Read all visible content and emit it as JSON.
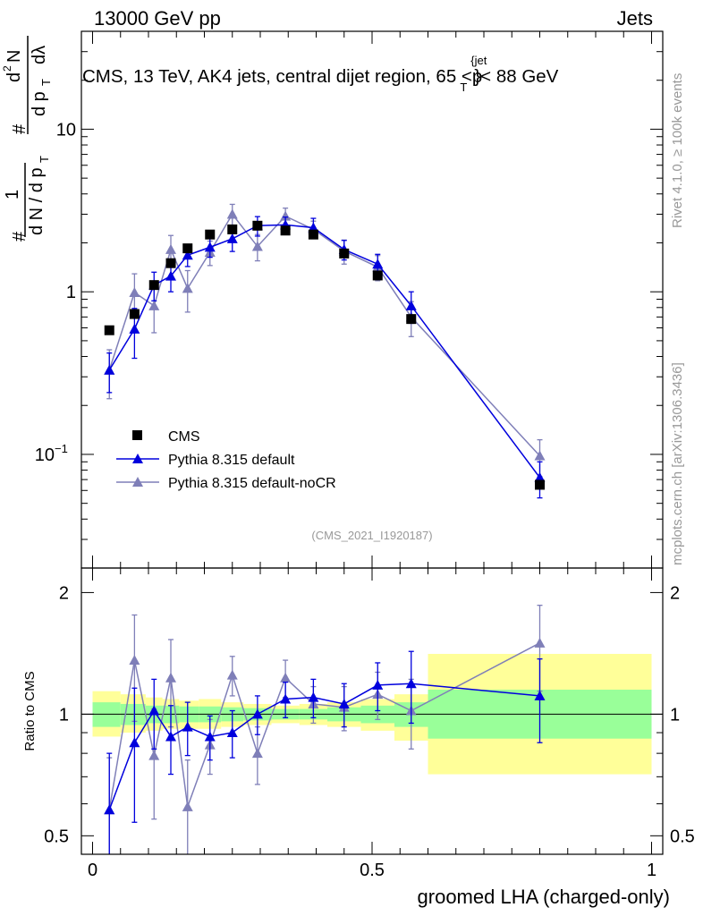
{
  "header": {
    "left": "13000 GeV pp",
    "right": "Jets"
  },
  "side_labels": {
    "rivet": "Rivet 4.1.0, ≥ 100k events",
    "mcplots": "mcplots.cern.ch [arXiv:1306.3436]"
  },
  "colors": {
    "cms": "#000000",
    "pythia_default": "#0000dd",
    "pythia_nocr": "#7f7fb8",
    "band_inner": "#99ff99",
    "band_outer": "#ffff99"
  },
  "chart_data": [
    {
      "type": "scatter",
      "panel": "main",
      "title": "CMS, 13 TeV, AK4 jets, central dijet region, 65 < p_T^{jet} < 88 GeV",
      "title_parts": {
        "prefix": "CMS, 13 TeV, AK4 jets, central dijet region, 65 <",
        "p": "p",
        "sub": "T",
        "sup": "{jet",
        "suffix": "}< 88 GeV"
      },
      "ylabel": "1/(dN/dp_T) d^2N/(dp_T dλ)",
      "ylabel_parts": {
        "hash": "#",
        "one": "1",
        "frac_den": "d N / d p",
        "sub_T": "T",
        "num_hash": "#",
        "num": "d",
        "sup2": "2",
        "N": "N",
        "den": "d p",
        "den2": "dλ"
      },
      "yscale": "log",
      "ylim": [
        0.02,
        40
      ],
      "xlim": [
        -0.02,
        1.02
      ],
      "y_ticks": [
        {
          "value": 10,
          "label": "10"
        },
        {
          "value": 1,
          "label": "1"
        },
        {
          "value": 0.1,
          "label": "10",
          "sup": "−1"
        }
      ],
      "analysis_id": "(CMS_2021_I1920187)",
      "legend": {
        "placement": "bottom-left",
        "entries": [
          "CMS",
          "Pythia 8.315 default",
          "Pythia 8.315 default-noCR"
        ]
      },
      "series": [
        {
          "name": "CMS",
          "marker": "square",
          "x": [
            0.03,
            0.075,
            0.11,
            0.14,
            0.17,
            0.21,
            0.25,
            0.295,
            0.345,
            0.395,
            0.45,
            0.51,
            0.57,
            0.8
          ],
          "y": [
            0.58,
            0.73,
            1.1,
            1.5,
            1.85,
            2.25,
            2.42,
            2.55,
            2.38,
            2.25,
            1.72,
            1.26,
            0.68,
            0.065
          ]
        },
        {
          "name": "Pythia 8.315 default",
          "marker": "triangle",
          "line": true,
          "x": [
            0.03,
            0.075,
            0.11,
            0.14,
            0.17,
            0.21,
            0.25,
            0.295,
            0.345,
            0.395,
            0.45,
            0.51,
            0.57,
            0.8
          ],
          "y": [
            0.33,
            0.59,
            1.1,
            1.25,
            1.68,
            1.88,
            2.12,
            2.55,
            2.58,
            2.48,
            1.82,
            1.48,
            0.82,
            0.072
          ],
          "err": [
            0.09,
            0.2,
            0.22,
            0.25,
            0.25,
            0.25,
            0.35,
            0.35,
            0.3,
            0.35,
            0.25,
            0.22,
            0.18,
            0.018
          ]
        },
        {
          "name": "Pythia 8.315 default-noCR",
          "marker": "triangle",
          "line": true,
          "x": [
            0.03,
            0.075,
            0.11,
            0.14,
            0.17,
            0.21,
            0.25,
            0.295,
            0.345,
            0.395,
            0.45,
            0.51,
            0.57,
            0.8
          ],
          "y": [
            0.33,
            0.99,
            0.82,
            1.82,
            1.05,
            1.75,
            3.0,
            1.9,
            2.92,
            2.42,
            1.78,
            1.42,
            0.7,
            0.098
          ],
          "err": [
            0.11,
            0.3,
            0.26,
            0.4,
            0.3,
            0.3,
            0.45,
            0.35,
            0.35,
            0.3,
            0.3,
            0.25,
            0.17,
            0.025
          ]
        }
      ]
    },
    {
      "type": "scatter",
      "panel": "ratio",
      "ylabel": "Ratio to CMS",
      "xlabel": "groomed LHA (charged-only)",
      "yscale": "log",
      "ylim": [
        0.45,
        2.3
      ],
      "xlim": [
        -0.02,
        1.02
      ],
      "x_ticks": [
        {
          "value": 0,
          "label": "0"
        },
        {
          "value": 0.5,
          "label": "0.5"
        },
        {
          "value": 1,
          "label": "1"
        }
      ],
      "y_ticks": [
        {
          "value": 2,
          "label": "2"
        },
        {
          "value": 1,
          "label": "1"
        },
        {
          "value": 0.5,
          "label": "0.5"
        }
      ],
      "bands": [
        {
          "x0": 0.0,
          "x1": 0.05,
          "inner": [
            0.93,
            1.07
          ],
          "outer": [
            0.88,
            1.14
          ]
        },
        {
          "x0": 0.05,
          "x1": 0.095,
          "inner": [
            0.94,
            1.06
          ],
          "outer": [
            0.9,
            1.12
          ]
        },
        {
          "x0": 0.095,
          "x1": 0.125,
          "inner": [
            0.95,
            1.05
          ],
          "outer": [
            0.91,
            1.1
          ]
        },
        {
          "x0": 0.125,
          "x1": 0.155,
          "inner": [
            0.95,
            1.05
          ],
          "outer": [
            0.92,
            1.09
          ]
        },
        {
          "x0": 0.155,
          "x1": 0.19,
          "inner": [
            0.955,
            1.045
          ],
          "outer": [
            0.92,
            1.08
          ]
        },
        {
          "x0": 0.19,
          "x1": 0.23,
          "inner": [
            0.955,
            1.045
          ],
          "outer": [
            0.92,
            1.09
          ]
        },
        {
          "x0": 0.23,
          "x1": 0.27,
          "inner": [
            0.96,
            1.04
          ],
          "outer": [
            0.93,
            1.07
          ]
        },
        {
          "x0": 0.27,
          "x1": 0.32,
          "inner": [
            0.965,
            1.035
          ],
          "outer": [
            0.94,
            1.06
          ]
        },
        {
          "x0": 0.32,
          "x1": 0.37,
          "inner": [
            0.97,
            1.03
          ],
          "outer": [
            0.95,
            1.05
          ]
        },
        {
          "x0": 0.37,
          "x1": 0.42,
          "inner": [
            0.97,
            1.03
          ],
          "outer": [
            0.94,
            1.06
          ]
        },
        {
          "x0": 0.42,
          "x1": 0.48,
          "inner": [
            0.96,
            1.04
          ],
          "outer": [
            0.93,
            1.07
          ]
        },
        {
          "x0": 0.48,
          "x1": 0.54,
          "inner": [
            0.95,
            1.05
          ],
          "outer": [
            0.91,
            1.09
          ]
        },
        {
          "x0": 0.54,
          "x1": 0.6,
          "inner": [
            0.93,
            1.07
          ],
          "outer": [
            0.86,
            1.12
          ]
        },
        {
          "x0": 0.6,
          "x1": 1.0,
          "inner": [
            0.87,
            1.15
          ],
          "outer": [
            0.71,
            1.41
          ]
        }
      ],
      "series": [
        {
          "name": "Pythia 8.315 default",
          "marker": "triangle",
          "line": true,
          "x": [
            0.03,
            0.075,
            0.11,
            0.14,
            0.17,
            0.21,
            0.25,
            0.295,
            0.345,
            0.395,
            0.45,
            0.51,
            0.57,
            0.8
          ],
          "y": [
            0.58,
            0.85,
            1.02,
            0.88,
            0.93,
            0.88,
            0.9,
            1.0,
            1.09,
            1.1,
            1.06,
            1.18,
            1.19,
            1.11
          ],
          "err": [
            0.22,
            0.31,
            0.2,
            0.17,
            0.14,
            0.11,
            0.12,
            0.11,
            0.11,
            0.12,
            0.13,
            0.16,
            0.24,
            0.26
          ]
        },
        {
          "name": "Pythia 8.315 default-noCR",
          "marker": "triangle",
          "line": true,
          "x": [
            0.03,
            0.075,
            0.11,
            0.14,
            0.17,
            0.21,
            0.25,
            0.295,
            0.345,
            0.395,
            0.45,
            0.51,
            0.57,
            0.8
          ],
          "y": [
            0.58,
            1.36,
            0.79,
            1.23,
            0.59,
            0.84,
            1.25,
            0.8,
            1.23,
            1.06,
            1.04,
            1.12,
            1.02,
            1.5
          ],
          "err": [
            0.2,
            0.4,
            0.24,
            0.3,
            0.18,
            0.13,
            0.14,
            0.13,
            0.13,
            0.11,
            0.13,
            0.15,
            0.2,
            0.36
          ]
        }
      ]
    }
  ]
}
